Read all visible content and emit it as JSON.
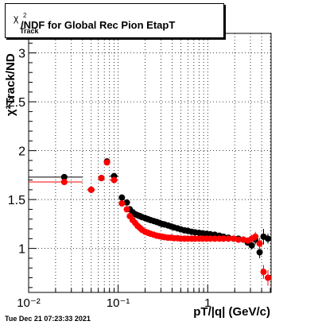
{
  "title": "χ²Track/NDF for Global Rec Pion EtapT",
  "title_parts": {
    "chi": "χ",
    "sup": "2",
    "sub": "Track",
    "rest": "/NDF for Global Rec Pion EtapT"
  },
  "timestamp": "Tue Dec 21 07:23:33 2021",
  "colors": {
    "series_a": "#000000",
    "series_b": "#ff0000",
    "grid": "#000000",
    "axes": "#000000"
  },
  "chart_data": {
    "type": "scatter",
    "title": "χ²Track/NDF for Global Rec Pion EtapT",
    "xlabel": "pT/|q| (GeV/c)",
    "ylabel": "χ²Track/ND",
    "xscale": "log",
    "xlim": [
      0.01,
      5.1
    ],
    "ylim": [
      0.55,
      3.2
    ],
    "grid": true,
    "x_ticks": [
      {
        "value": 0.01,
        "label": "10⁻²"
      },
      {
        "value": 0.1,
        "label": "10⁻¹"
      },
      {
        "value": 1,
        "label": "1"
      }
    ],
    "y_ticks": [
      {
        "value": 1,
        "label": "1"
      },
      {
        "value": 1.5,
        "label": "1.5"
      },
      {
        "value": 2,
        "label": "2"
      },
      {
        "value": 2.5,
        "label": "2.5"
      },
      {
        "value": 3,
        "label": "3"
      }
    ],
    "series": [
      {
        "color": "#000000",
        "points": [
          {
            "x": 0.025,
            "y": 1.73,
            "xerr": [
              0.01,
              0.04
            ],
            "yerr": 0.02
          },
          {
            "x": 0.05,
            "y": 1.6,
            "xerr": [
              0.045,
              0.055
            ],
            "yerr": 0.02
          },
          {
            "x": 0.065,
            "y": 1.72,
            "xerr": [
              0.06,
              0.07
            ],
            "yerr": 0.02
          },
          {
            "x": 0.075,
            "y": 1.89,
            "xerr": [
              0.07,
              0.08
            ],
            "yerr": 0.02
          },
          {
            "x": 0.09,
            "y": 1.74,
            "xerr": [
              0.08,
              0.1
            ],
            "yerr": 0.02
          },
          {
            "x": 0.11,
            "y": 1.52
          },
          {
            "x": 0.125,
            "y": 1.47
          },
          {
            "x": 0.135,
            "y": 1.4
          },
          {
            "x": 0.145,
            "y": 1.37
          },
          {
            "x": 0.155,
            "y": 1.35
          },
          {
            "x": 0.165,
            "y": 1.34
          },
          {
            "x": 0.175,
            "y": 1.33
          },
          {
            "x": 0.185,
            "y": 1.32
          },
          {
            "x": 0.2,
            "y": 1.31
          },
          {
            "x": 0.215,
            "y": 1.3
          },
          {
            "x": 0.23,
            "y": 1.29
          },
          {
            "x": 0.25,
            "y": 1.28
          },
          {
            "x": 0.27,
            "y": 1.27
          },
          {
            "x": 0.29,
            "y": 1.26
          },
          {
            "x": 0.31,
            "y": 1.25
          },
          {
            "x": 0.33,
            "y": 1.245
          },
          {
            "x": 0.36,
            "y": 1.235
          },
          {
            "x": 0.39,
            "y": 1.225
          },
          {
            "x": 0.42,
            "y": 1.215
          },
          {
            "x": 0.46,
            "y": 1.205
          },
          {
            "x": 0.5,
            "y": 1.195
          },
          {
            "x": 0.55,
            "y": 1.185
          },
          {
            "x": 0.6,
            "y": 1.18
          },
          {
            "x": 0.66,
            "y": 1.17
          },
          {
            "x": 0.72,
            "y": 1.165
          },
          {
            "x": 0.8,
            "y": 1.16
          },
          {
            "x": 0.88,
            "y": 1.155
          },
          {
            "x": 0.97,
            "y": 1.15
          },
          {
            "x": 1.07,
            "y": 1.145
          },
          {
            "x": 1.2,
            "y": 1.14
          },
          {
            "x": 1.35,
            "y": 1.13
          },
          {
            "x": 1.5,
            "y": 1.12
          },
          {
            "x": 1.7,
            "y": 1.11
          },
          {
            "x": 1.95,
            "y": 1.1
          },
          {
            "x": 2.2,
            "y": 1.1
          },
          {
            "x": 2.5,
            "y": 1.09
          },
          {
            "x": 2.8,
            "y": 1.06,
            "yerr": 0.03
          },
          {
            "x": 3.1,
            "y": 1.03,
            "yerr": 0.04
          },
          {
            "x": 3.4,
            "y": 1.09,
            "yerr": 0.05
          },
          {
            "x": 3.8,
            "y": 0.96,
            "yerr": 0.06
          },
          {
            "x": 4.2,
            "y": 1.12,
            "yerr": 0.08
          },
          {
            "x": 4.7,
            "y": 1.1,
            "yerr": 0.05
          }
        ]
      },
      {
        "color": "#ff0000",
        "points": [
          {
            "x": 0.025,
            "y": 1.68,
            "xerr": [
              0.01,
              0.04
            ],
            "yerr": 0.02
          },
          {
            "x": 0.05,
            "y": 1.6,
            "xerr": [
              0.045,
              0.055
            ],
            "yerr": 0.02
          },
          {
            "x": 0.065,
            "y": 1.72,
            "xerr": [
              0.06,
              0.07
            ],
            "yerr": 0.02
          },
          {
            "x": 0.075,
            "y": 1.88,
            "xerr": [
              0.07,
              0.08
            ],
            "yerr": 0.02
          },
          {
            "x": 0.09,
            "y": 1.7,
            "xerr": [
              0.08,
              0.1
            ],
            "yerr": 0.02
          },
          {
            "x": 0.11,
            "y": 1.46
          },
          {
            "x": 0.125,
            "y": 1.4
          },
          {
            "x": 0.135,
            "y": 1.33
          },
          {
            "x": 0.145,
            "y": 1.29
          },
          {
            "x": 0.155,
            "y": 1.26
          },
          {
            "x": 0.165,
            "y": 1.23
          },
          {
            "x": 0.175,
            "y": 1.21
          },
          {
            "x": 0.185,
            "y": 1.19
          },
          {
            "x": 0.2,
            "y": 1.17
          },
          {
            "x": 0.215,
            "y": 1.16
          },
          {
            "x": 0.23,
            "y": 1.15
          },
          {
            "x": 0.25,
            "y": 1.14
          },
          {
            "x": 0.27,
            "y": 1.13
          },
          {
            "x": 0.29,
            "y": 1.125
          },
          {
            "x": 0.31,
            "y": 1.12
          },
          {
            "x": 0.33,
            "y": 1.115
          },
          {
            "x": 0.36,
            "y": 1.11
          },
          {
            "x": 0.39,
            "y": 1.11
          },
          {
            "x": 0.42,
            "y": 1.105
          },
          {
            "x": 0.46,
            "y": 1.105
          },
          {
            "x": 0.5,
            "y": 1.1
          },
          {
            "x": 0.55,
            "y": 1.1
          },
          {
            "x": 0.6,
            "y": 1.1
          },
          {
            "x": 0.66,
            "y": 1.1
          },
          {
            "x": 0.72,
            "y": 1.1
          },
          {
            "x": 0.8,
            "y": 1.1
          },
          {
            "x": 0.88,
            "y": 1.1
          },
          {
            "x": 0.97,
            "y": 1.1
          },
          {
            "x": 1.07,
            "y": 1.1
          },
          {
            "x": 1.2,
            "y": 1.1
          },
          {
            "x": 1.35,
            "y": 1.1
          },
          {
            "x": 1.5,
            "y": 1.1
          },
          {
            "x": 1.7,
            "y": 1.1
          },
          {
            "x": 1.95,
            "y": 1.1
          },
          {
            "x": 2.2,
            "y": 1.09
          },
          {
            "x": 2.5,
            "y": 1.09
          },
          {
            "x": 2.8,
            "y": 1.08,
            "yerr": 0.03
          },
          {
            "x": 3.1,
            "y": 1.1,
            "yerr": 0.04
          },
          {
            "x": 3.4,
            "y": 1.12,
            "yerr": 0.05
          },
          {
            "x": 3.8,
            "y": 1.05,
            "yerr": 0.06
          },
          {
            "x": 4.2,
            "y": 0.76,
            "yerr": 0.07
          },
          {
            "x": 4.7,
            "y": 0.7,
            "yerr": 0.08
          }
        ]
      }
    ]
  }
}
